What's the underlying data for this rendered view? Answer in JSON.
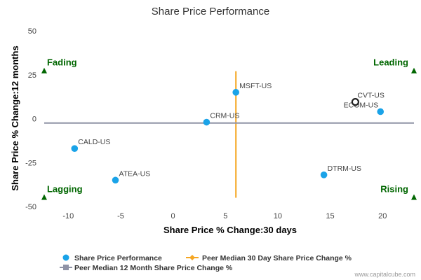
{
  "chart_data": {
    "type": "scatter",
    "title": "Share Price Performance",
    "xlabel": "Share Price % Change:30 days",
    "ylabel": "Share Price % Change:12 months",
    "xlim": [
      -12.5,
      23
    ],
    "ylim": [
      -50,
      50
    ],
    "x_ticks": [
      -10,
      -5,
      0,
      5,
      10,
      15,
      20
    ],
    "x_tick_labels": [
      "-10",
      "-5",
      "0",
      "5",
      "10",
      "15",
      "20"
    ],
    "y_ticks": [
      50,
      25,
      0,
      -25,
      -50
    ],
    "y_tick_labels": [
      "50",
      "25",
      "0",
      "-25",
      "-50"
    ],
    "grid": false,
    "legend_position": "bottom",
    "colors": {
      "points": "#1aa3e8",
      "highlight_stroke": "#222222",
      "peer_30d_line": "#f5a623",
      "peer_12m_line": "#8f93a6",
      "quadrant": "#006600"
    },
    "series": [
      {
        "name": "Share Price Performance",
        "points": [
          {
            "label": "MSFT-US",
            "x": 6.0,
            "y": 15
          },
          {
            "label": "CRM-US",
            "x": 3.2,
            "y": -2
          },
          {
            "label": "CALD-US",
            "x": -9.4,
            "y": -17
          },
          {
            "label": "ATEA-US",
            "x": -5.5,
            "y": -35
          },
          {
            "label": "DTRM-US",
            "x": 14.4,
            "y": -32
          },
          {
            "label": "ECOM-US",
            "x": 19.8,
            "y": 4
          },
          {
            "label": "CVT-US",
            "x": 17.4,
            "y": 9.5,
            "highlight": true
          }
        ]
      }
    ],
    "reference_lines": [
      {
        "name": "Peer Median 30 Day Share Price Change %",
        "orientation": "vertical",
        "value": 6.0,
        "from": -45,
        "to": 27
      },
      {
        "name": "Peer Median 12 Month Share Price Change %",
        "orientation": "horizontal",
        "value": -2.5,
        "from": -12.3,
        "to": 23
      }
    ],
    "quadrant_labels": [
      {
        "text": "Fading",
        "x": -12.3,
        "y": 27
      },
      {
        "text": "Leading",
        "x": 23,
        "y": 27
      },
      {
        "text": "Lagging",
        "x": -12.3,
        "y": -45
      },
      {
        "text": "Rising",
        "x": 23,
        "y": -45
      }
    ],
    "legend": [
      {
        "label": "Share Price Performance",
        "marker": "dot"
      },
      {
        "label": "Peer Median 30 Day Share Price Change %",
        "marker": "line-diamond"
      },
      {
        "label": "Peer Median 12 Month Share Price Change %",
        "marker": "line-square"
      }
    ],
    "footer": "www.capitalcube.com"
  }
}
